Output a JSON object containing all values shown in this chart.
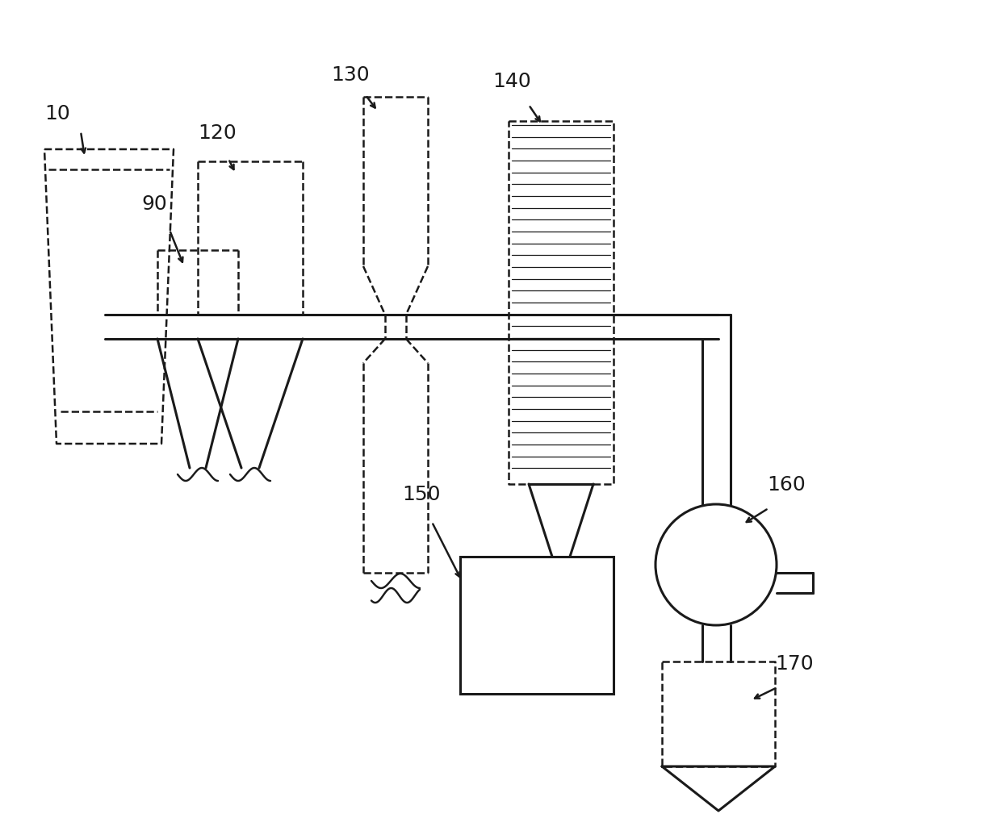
{
  "bg_color": "#ffffff",
  "line_color": "#1a1a1a",
  "lw": 2.2,
  "dlw": 1.8,
  "label_fs": 18
}
